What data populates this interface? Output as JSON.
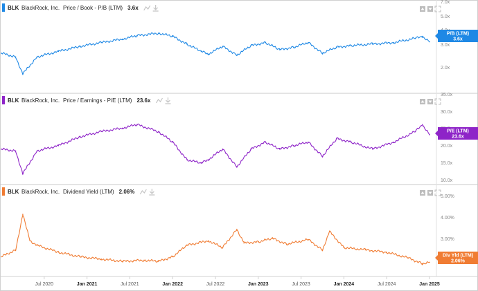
{
  "chart_data": [
    {
      "type": "line",
      "ticker": "BLK",
      "company": "BlackRock, Inc.",
      "metric": "Price / Book - P/B (LTM)",
      "current_value": "3.6x",
      "tag_label": "P/B (LTM)",
      "tag_value": "3.6x",
      "color": "#1e88e5",
      "y_ticks": [
        "7.0x",
        "5.0x",
        "4.0x",
        "3.0x",
        "2.0x"
      ],
      "ylim": [
        1.4,
        7.5
      ],
      "log_scale": true,
      "x": [
        "2020-01",
        "2020-03",
        "2020-04",
        "2020-06",
        "2020-09",
        "2020-12",
        "2021-03",
        "2021-06",
        "2021-08",
        "2021-11",
        "2022-01",
        "2022-03",
        "2022-05",
        "2022-06",
        "2022-08",
        "2022-10",
        "2022-12",
        "2023-02",
        "2023-04",
        "2023-06",
        "2023-08",
        "2023-10",
        "2023-12",
        "2024-02",
        "2024-05",
        "2024-08",
        "2024-11",
        "2024-12",
        "2025-01"
      ],
      "values": [
        2.9,
        2.7,
        1.95,
        2.7,
        3.0,
        3.3,
        3.55,
        3.8,
        4.05,
        4.25,
        4.0,
        3.45,
        3.0,
        2.85,
        3.3,
        2.8,
        3.35,
        3.55,
        3.1,
        3.25,
        3.55,
        2.9,
        3.25,
        3.35,
        3.45,
        3.55,
        3.85,
        4.0,
        3.6
      ]
    },
    {
      "type": "line",
      "ticker": "BLK",
      "company": "BlackRock, Inc.",
      "metric": "Price / Earnings - P/E (LTM)",
      "current_value": "23.6x",
      "tag_label": "P/E (LTM)",
      "tag_value": "23.6x",
      "color": "#8e24c8",
      "y_ticks": [
        "35.0x",
        "30.0x",
        "25.0x",
        "20.0x",
        "15.0x",
        "10.0x"
      ],
      "ylim": [
        10,
        35
      ],
      "log_scale": false,
      "x": [
        "2020-01",
        "2020-03",
        "2020-04",
        "2020-06",
        "2020-09",
        "2020-12",
        "2021-03",
        "2021-06",
        "2021-08",
        "2021-11",
        "2022-01",
        "2022-03",
        "2022-05",
        "2022-06",
        "2022-08",
        "2022-10",
        "2022-12",
        "2023-02",
        "2023-04",
        "2023-06",
        "2023-08",
        "2023-10",
        "2023-12",
        "2024-02",
        "2024-05",
        "2024-08",
        "2024-11",
        "2024-12",
        "2025-01"
      ],
      "values": [
        19.5,
        19,
        12.5,
        19,
        20.5,
        23,
        24.5,
        25.5,
        26.5,
        24.5,
        21.5,
        16.5,
        15.5,
        16.5,
        19.5,
        14.5,
        19.5,
        21.5,
        19.5,
        20.5,
        21.5,
        17.5,
        22.5,
        21.5,
        19.5,
        21.5,
        24.5,
        26.5,
        23.6
      ]
    },
    {
      "type": "line",
      "ticker": "BLK",
      "company": "BlackRock, Inc.",
      "metric": "Dividend Yield (LTM)",
      "current_value": "2.06%",
      "tag_label": "Div Yld (LTM)",
      "tag_value": "2.06%",
      "color": "#f07c33",
      "y_ticks": [
        "5.00%",
        "4.00%",
        "3.00%"
      ],
      "ylim": [
        1.5,
        5.3
      ],
      "log_scale": false,
      "x": [
        "2020-01",
        "2020-03",
        "2020-04",
        "2020-05",
        "2020-06",
        "2020-09",
        "2020-12",
        "2021-03",
        "2021-06",
        "2021-09",
        "2021-11",
        "2022-01",
        "2022-03",
        "2022-06",
        "2022-08",
        "2022-10",
        "2022-11",
        "2023-01",
        "2023-03",
        "2023-05",
        "2023-08",
        "2023-10",
        "2023-11",
        "2024-01",
        "2024-04",
        "2024-07",
        "2024-10",
        "2024-12",
        "2025-01"
      ],
      "values": [
        2.3,
        2.6,
        4.15,
        3.0,
        2.8,
        2.5,
        2.3,
        2.2,
        2.1,
        2.15,
        2.1,
        2.3,
        2.8,
        3.0,
        2.7,
        3.5,
        2.9,
        2.95,
        3.1,
        2.85,
        3.05,
        2.6,
        3.4,
        2.7,
        2.6,
        2.5,
        2.25,
        2.0,
        2.06
      ]
    }
  ],
  "x_axis": {
    "ticks": [
      {
        "label": "Jul 2020",
        "date": "2020-07",
        "bold": false
      },
      {
        "label": "Jan 2021",
        "date": "2021-01",
        "bold": true
      },
      {
        "label": "Jul 2021",
        "date": "2021-07",
        "bold": false
      },
      {
        "label": "Jan 2022",
        "date": "2022-01",
        "bold": true
      },
      {
        "label": "Jul 2022",
        "date": "2022-07",
        "bold": false
      },
      {
        "label": "Jan 2023",
        "date": "2023-01",
        "bold": true
      },
      {
        "label": "Jul 2023",
        "date": "2023-07",
        "bold": false
      },
      {
        "label": "Jan 2024",
        "date": "2024-01",
        "bold": true
      },
      {
        "label": "Jul 2024",
        "date": "2024-07",
        "bold": false
      },
      {
        "label": "Jan 2025",
        "date": "2025-01",
        "bold": true
      }
    ],
    "range": [
      "2020-01",
      "2025-01"
    ]
  },
  "icons": [
    "chart-type-icon",
    "download-icon",
    "expand-icon"
  ]
}
